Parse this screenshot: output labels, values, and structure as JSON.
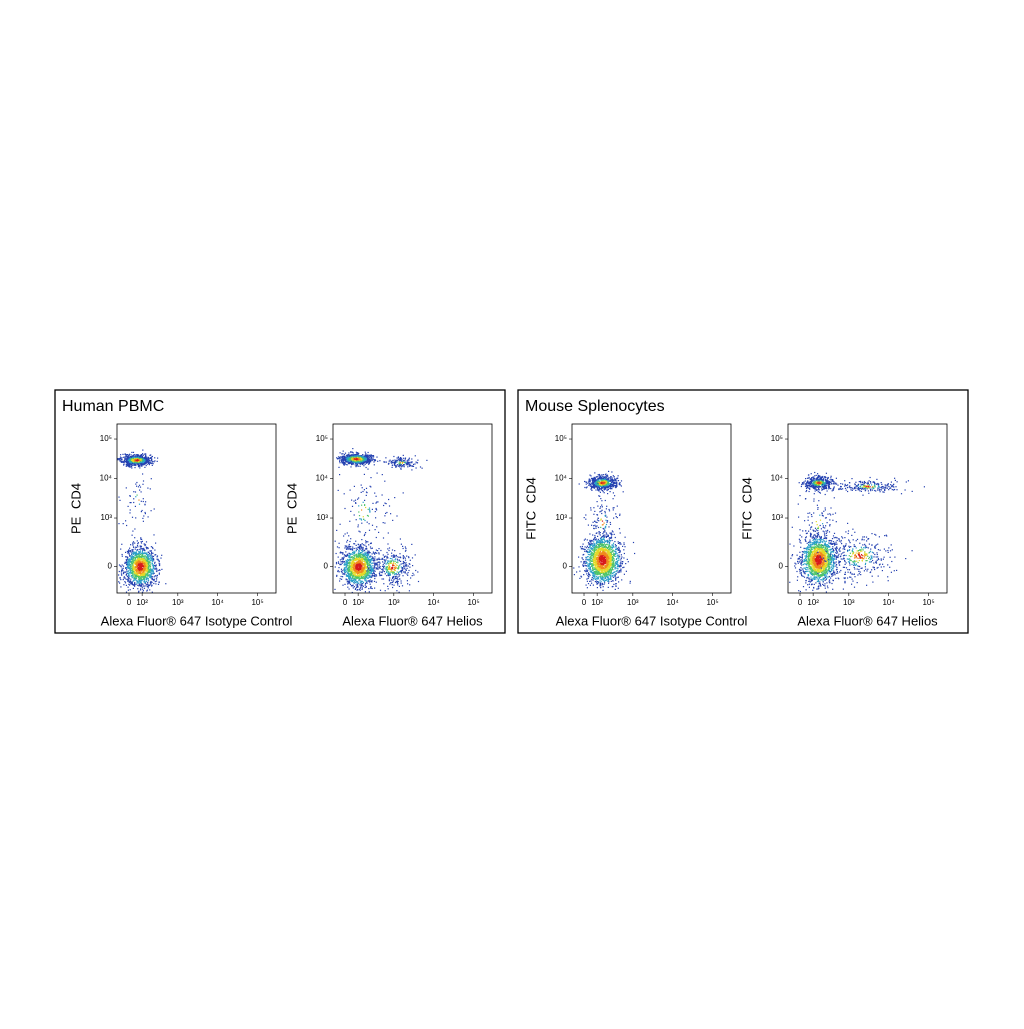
{
  "panels": [
    {
      "title": "Human PBMC",
      "chart_data": [
        {
          "type": "scatter",
          "x_label": "Alexa Fluor® 647 Isotype Control",
          "y_label": "PE CD4",
          "xlim": [
            -90,
            290000
          ],
          "ylim": [
            -270,
            240000
          ],
          "xticks": [
            0,
            {
              "value": 100,
              "label": "10²"
            },
            {
              "value": 1000,
              "label": "10³"
            },
            {
              "value": 10000,
              "label": "10⁴"
            },
            {
              "value": 100000,
              "label": "10⁵"
            }
          ],
          "yticks": [
            0,
            {
              "value": 1000,
              "label": "10³"
            },
            {
              "value": 10000,
              "label": "10⁴"
            },
            {
              "value": 100000,
              "label": "10⁵"
            }
          ],
          "populations": [
            {
              "x": 50,
              "y": 30000,
              "spread_x": 0.18,
              "spread_y": 0.07,
              "events": 700
            },
            {
              "x": 60,
              "y": 3000,
              "spread_x": 0.2,
              "spread_y": 0.5,
              "events": 60
            },
            {
              "x": 80,
              "y": 0,
              "spread_x": 0.2,
              "spread_y": 0.25,
              "events": 1300
            }
          ]
        },
        {
          "type": "scatter",
          "x_label": "Alexa Fluor® 647 Helios",
          "y_label": "PE CD4",
          "xlim": [
            -90,
            290000
          ],
          "ylim": [
            -270,
            240000
          ],
          "xticks": [
            0,
            {
              "value": 100,
              "label": "10²"
            },
            {
              "value": 1000,
              "label": "10³"
            },
            {
              "value": 10000,
              "label": "10⁴"
            },
            {
              "value": 100000,
              "label": "10⁵"
            }
          ],
          "yticks": [
            0,
            {
              "value": 1000,
              "label": "10³"
            },
            {
              "value": 10000,
              "label": "10⁴"
            },
            {
              "value": 100000,
              "label": "10⁵"
            }
          ],
          "populations": [
            {
              "x": 80,
              "y": 32000,
              "spread_x": 0.2,
              "spread_y": 0.07,
              "events": 800
            },
            {
              "x": 1500,
              "y": 26000,
              "spread_x": 0.22,
              "spread_y": 0.07,
              "events": 150
            },
            {
              "x": 150,
              "y": 1500,
              "spread_x": 0.35,
              "spread_y": 0.5,
              "events": 120
            },
            {
              "x": 100,
              "y": 0,
              "spread_x": 0.22,
              "spread_y": 0.25,
              "events": 1300
            },
            {
              "x": 900,
              "y": 0,
              "spread_x": 0.25,
              "spread_y": 0.25,
              "events": 350
            }
          ]
        }
      ]
    },
    {
      "title": "Mouse Splenocytes",
      "chart_data": [
        {
          "type": "scatter",
          "x_label": "Alexa Fluor® 647 Isotype Control",
          "y_label": "FITC CD4",
          "xlim": [
            -90,
            290000
          ],
          "ylim": [
            -270,
            240000
          ],
          "xticks": [
            0,
            {
              "value": 100,
              "label": "10²"
            },
            {
              "value": 1000,
              "label": "10³"
            },
            {
              "value": 10000,
              "label": "10⁴"
            },
            {
              "value": 100000,
              "label": "10⁵"
            }
          ],
          "yticks": [
            0,
            {
              "value": 1000,
              "label": "10³"
            },
            {
              "value": 10000,
              "label": "10⁴"
            },
            {
              "value": 100000,
              "label": "10⁵"
            }
          ],
          "populations": [
            {
              "x": 150,
              "y": 8000,
              "spread_x": 0.18,
              "spread_y": 0.09,
              "events": 600
            },
            {
              "x": 150,
              "y": 800,
              "spread_x": 0.2,
              "spread_y": 0.45,
              "events": 120
            },
            {
              "x": 150,
              "y": 50,
              "spread_x": 0.22,
              "spread_y": 0.3,
              "events": 1600
            }
          ]
        },
        {
          "type": "scatter",
          "x_label": "Alexa Fluor® 647 Helios",
          "y_label": "FITC CD4",
          "xlim": [
            -90,
            290000
          ],
          "ylim": [
            -270,
            240000
          ],
          "xticks": [
            0,
            {
              "value": 100,
              "label": "10²"
            },
            {
              "value": 1000,
              "label": "10³"
            },
            {
              "value": 10000,
              "label": "10⁴"
            },
            {
              "value": 100000,
              "label": "10⁵"
            }
          ],
          "yticks": [
            0,
            {
              "value": 1000,
              "label": "10³"
            },
            {
              "value": 10000,
              "label": "10⁴"
            },
            {
              "value": 100000,
              "label": "10⁵"
            }
          ],
          "populations": [
            {
              "x": 150,
              "y": 8000,
              "spread_x": 0.18,
              "spread_y": 0.08,
              "events": 450
            },
            {
              "x": 3000,
              "y": 6500,
              "spread_x": 0.4,
              "spread_y": 0.08,
              "events": 220
            },
            {
              "x": 150,
              "y": 800,
              "spread_x": 0.25,
              "spread_y": 0.45,
              "events": 100
            },
            {
              "x": 150,
              "y": 50,
              "spread_x": 0.22,
              "spread_y": 0.3,
              "events": 1500
            },
            {
              "x": 1800,
              "y": 80,
              "spread_x": 0.4,
              "spread_y": 0.28,
              "events": 350
            }
          ]
        }
      ]
    }
  ]
}
